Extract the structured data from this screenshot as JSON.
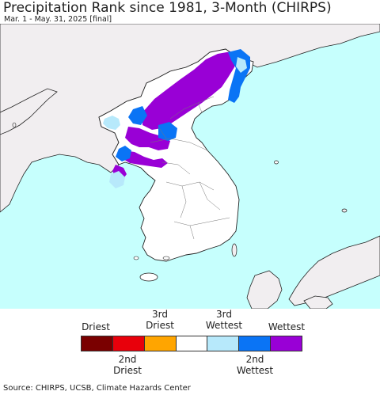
{
  "header": {
    "title": "Precipitation Rank since 1981, 3-Month (CHIRPS)",
    "subtitle": "Mar. 1 - May. 31, 2025 [final]"
  },
  "legend": {
    "top_labels": [
      "Driest",
      "3rd\nDriest",
      "3rd\nWettest",
      "Wettest"
    ],
    "bottom_labels": [
      "2nd\nDriest",
      "2nd\nWettest"
    ],
    "colors": [
      "#7a0000",
      "#e8000b",
      "#ffa500",
      "#ffffff",
      "#b7e9fb",
      "#0a74f5",
      "#9900d6"
    ]
  },
  "map": {
    "sea_color": "#c6fffd",
    "land_color": "#f1eef0",
    "korea_color": "#ffffff",
    "wettest_color": "#9900d6",
    "second_wettest_color": "#0a74f5",
    "third_wettest_color": "#b7e9fb"
  },
  "footer": {
    "source": "Source: CHIRPS, UCSB, Climate Hazards Center"
  }
}
